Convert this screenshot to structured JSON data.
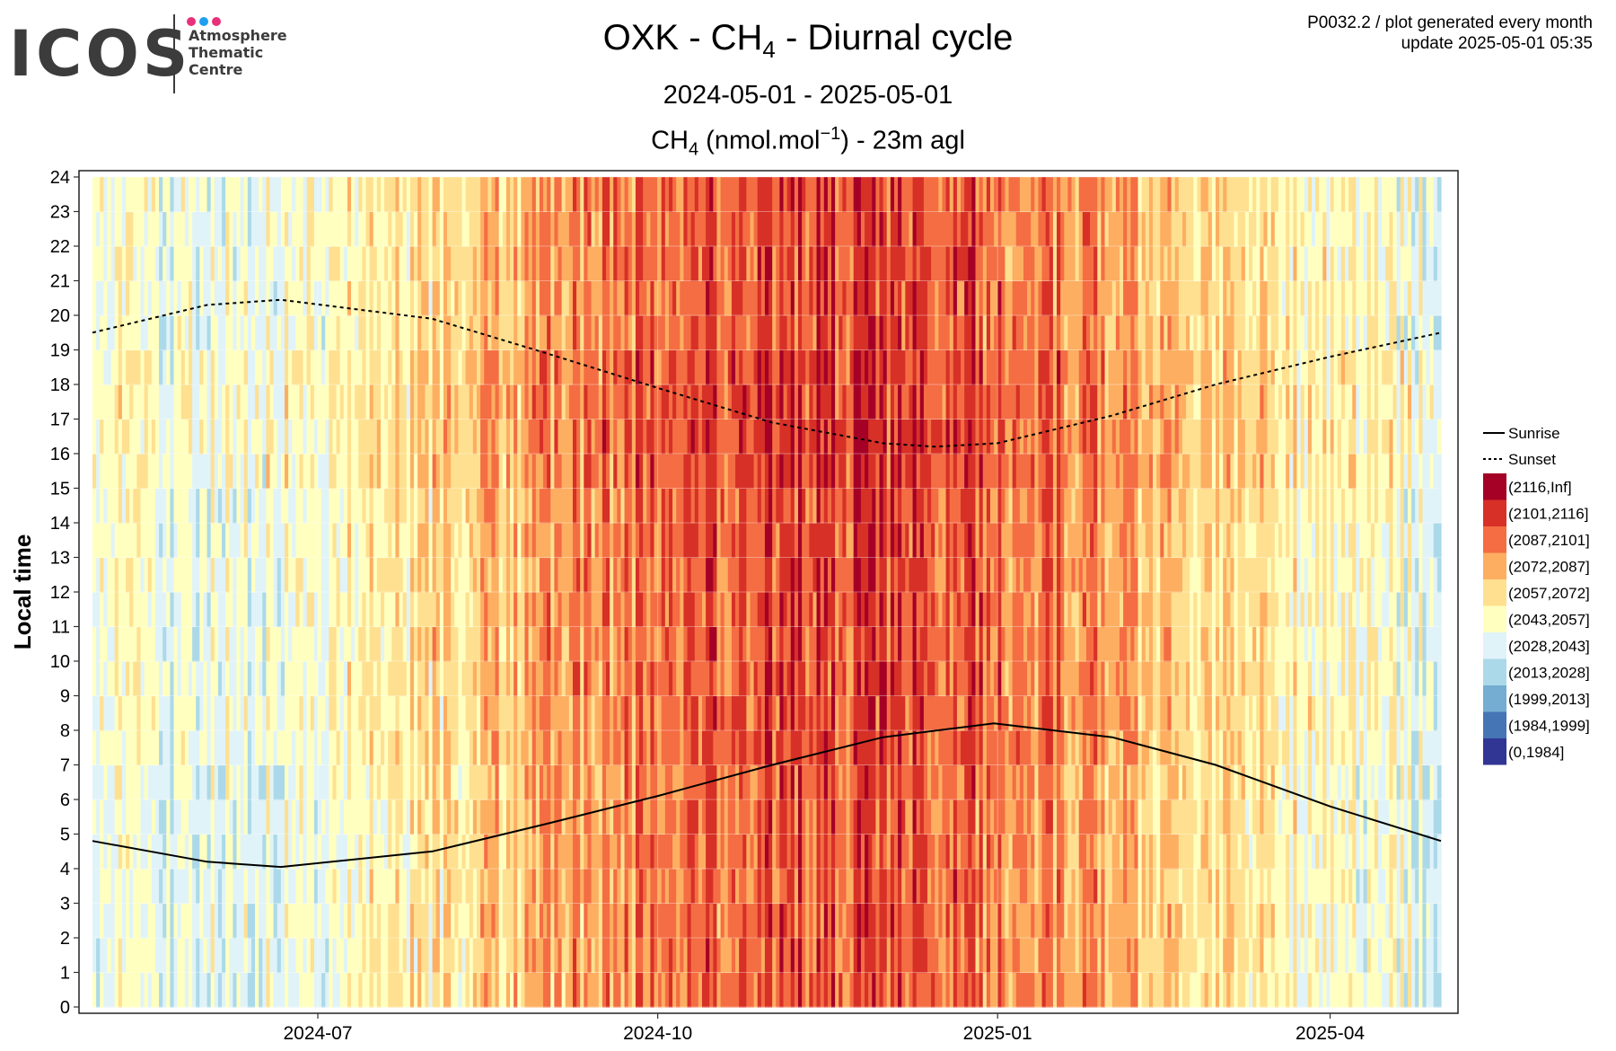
{
  "logo": {
    "word": "ICOS",
    "lines": [
      "Atmosphere",
      "Thematic",
      "Centre"
    ],
    "dot_colors": [
      "#e8317a",
      "#1e9ff0",
      "#e8317a"
    ]
  },
  "meta": {
    "line1": "P0032.2 / plot generated every month",
    "line2": "update  2025-05-01 05:35"
  },
  "header": {
    "title_pre": "OXK - CH",
    "title_sub": "4",
    "title_post": " - Diurnal cycle",
    "period": "2024-05-01 - 2025-05-01",
    "var_pre": "CH",
    "var_sub": "4",
    "var_mid": " (nmol.mol",
    "var_sup": "−1",
    "var_post": ") - 23m agl"
  },
  "chart_data": {
    "type": "heatmap",
    "title": "OXK - CH4 - Diurnal cycle",
    "subtitle": "2024-05-01 - 2025-05-01",
    "colorbar_label": "CH4 (nmol.mol-1) - 23m agl",
    "xlabel": "",
    "ylabel": "Local time",
    "x_range": [
      "2024-05-01",
      "2025-05-01"
    ],
    "x_ticks": [
      "2024-07",
      "2024-10",
      "2025-01",
      "2025-04"
    ],
    "x_tick_dates": [
      "2024-07-01",
      "2024-10-01",
      "2025-01-01",
      "2025-04-01"
    ],
    "y_range": [
      0,
      24
    ],
    "y_ticks": [
      0,
      1,
      2,
      3,
      4,
      5,
      6,
      7,
      8,
      9,
      10,
      11,
      12,
      13,
      14,
      15,
      16,
      17,
      18,
      19,
      20,
      21,
      22,
      23,
      24
    ],
    "grid": true,
    "legend_position": "right",
    "legend_lines": [
      {
        "name": "Sunrise",
        "style": "solid"
      },
      {
        "name": "Sunset",
        "style": "dotted"
      }
    ],
    "bins": [
      {
        "label": "(2116,Inf]",
        "color": "#a50026"
      },
      {
        "label": "(2101,2116]",
        "color": "#d73027"
      },
      {
        "label": "(2087,2101]",
        "color": "#f46d43"
      },
      {
        "label": "(2072,2087]",
        "color": "#fdae61"
      },
      {
        "label": "(2057,2072]",
        "color": "#fee090"
      },
      {
        "label": "(2043,2057]",
        "color": "#ffffbf"
      },
      {
        "label": "(2028,2043]",
        "color": "#e0f3f8"
      },
      {
        "label": "(2013,2028]",
        "color": "#abd9e9"
      },
      {
        "label": "(1999,2013]",
        "color": "#74add1"
      },
      {
        "label": "(1984,1999]",
        "color": "#4575b4"
      },
      {
        "label": "(0,1984]",
        "color": "#313695"
      }
    ],
    "sunrise": {
      "dates": [
        "2024-05-01",
        "2024-06-01",
        "2024-06-21",
        "2024-08-01",
        "2024-09-01",
        "2024-10-01",
        "2024-11-01",
        "2024-12-01",
        "2024-12-31",
        "2025-02-01",
        "2025-03-01",
        "2025-04-01",
        "2025-05-01"
      ],
      "hours": [
        4.8,
        4.2,
        4.05,
        4.5,
        5.3,
        6.1,
        7.0,
        7.8,
        8.2,
        7.8,
        7.0,
        5.8,
        4.8
      ]
    },
    "sunset": {
      "dates": [
        "2024-05-01",
        "2024-06-01",
        "2024-06-21",
        "2024-08-01",
        "2024-09-01",
        "2024-10-01",
        "2024-11-01",
        "2024-12-01",
        "2024-12-15",
        "2025-01-01",
        "2025-02-01",
        "2025-03-01",
        "2025-04-01",
        "2025-05-01"
      ],
      "hours": [
        19.5,
        20.3,
        20.45,
        19.9,
        18.9,
        17.9,
        16.9,
        16.3,
        16.2,
        16.3,
        17.1,
        18.0,
        18.8,
        19.5
      ]
    }
  }
}
